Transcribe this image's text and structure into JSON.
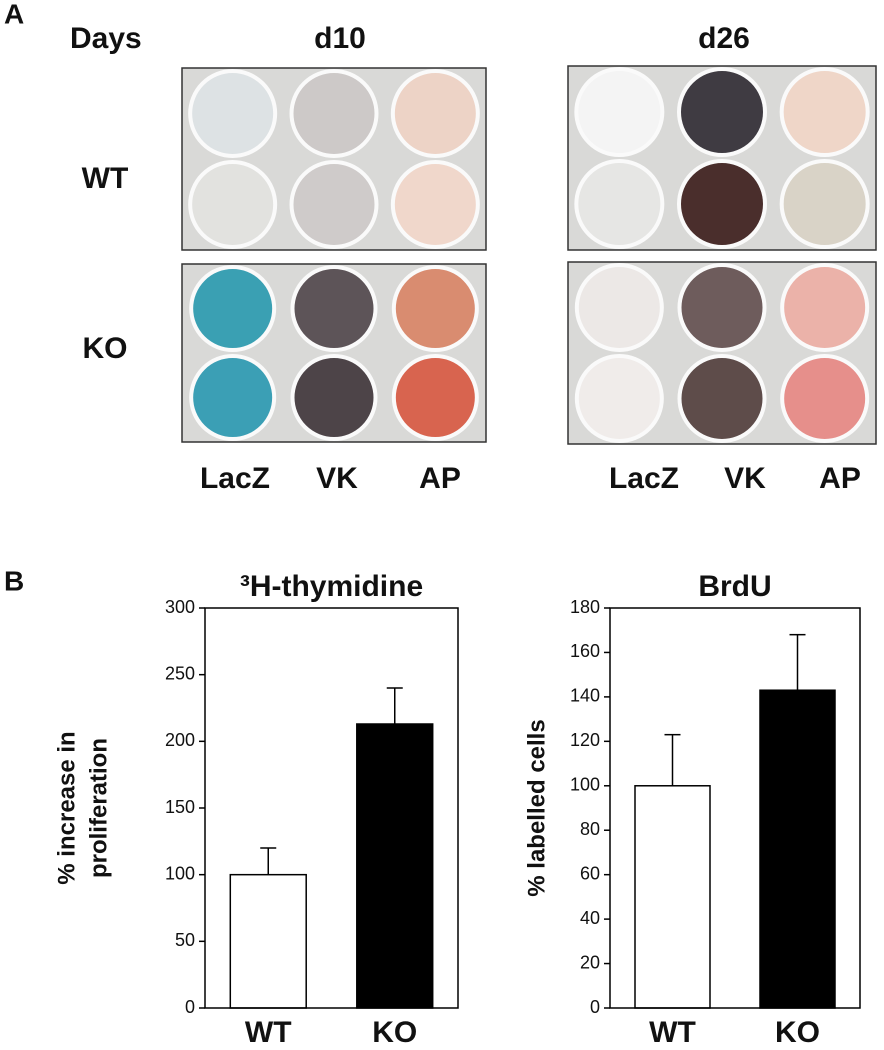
{
  "panel_a": {
    "label": "A",
    "days": "Days",
    "timepoints": [
      "d10",
      "d26"
    ],
    "rows": [
      "WT",
      "KO"
    ],
    "stains_d10": [
      "LacZ",
      "VK",
      "AP"
    ],
    "stains_d26": [
      "LacZ",
      "VK",
      "AP"
    ]
  },
  "panel_b": {
    "label": "B"
  },
  "chart_data": [
    {
      "type": "bar",
      "title": "³H-thymidine",
      "ylabel": [
        "% increase in",
        "proliferation"
      ],
      "categories": [
        "WT",
        "KO"
      ],
      "values": [
        100,
        213
      ],
      "errors": [
        20,
        27
      ],
      "colors": [
        "#ffffff",
        "#000000"
      ],
      "ylim": [
        0,
        300
      ],
      "yticks": [
        0,
        50,
        100,
        150,
        200,
        250,
        300
      ]
    },
    {
      "type": "bar",
      "title": "BrdU",
      "ylabel": [
        "% labelled cells"
      ],
      "categories": [
        "WT",
        "KO"
      ],
      "values": [
        100,
        143
      ],
      "errors": [
        23,
        25
      ],
      "colors": [
        "#ffffff",
        "#000000"
      ],
      "ylim": [
        0,
        180
      ],
      "yticks": [
        0,
        20,
        40,
        60,
        80,
        100,
        120,
        140,
        160,
        180
      ]
    }
  ]
}
